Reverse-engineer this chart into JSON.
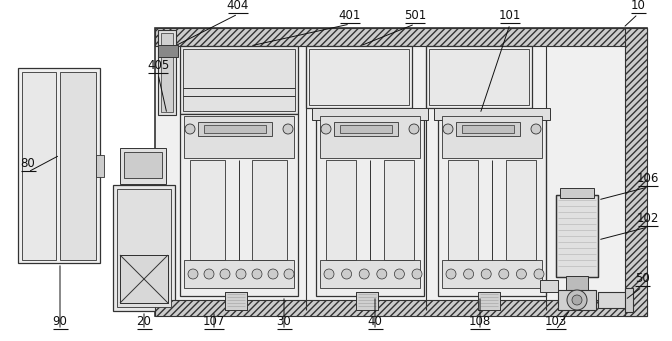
{
  "bg_color": "#ffffff",
  "lc": "#333333",
  "figsize": [
    6.72,
    3.41
  ],
  "dpi": 100
}
